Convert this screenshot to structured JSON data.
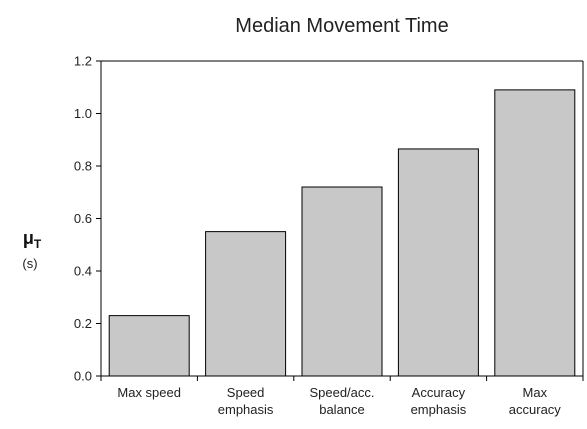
{
  "chart_data": {
    "type": "bar",
    "title": "Median Movement Time",
    "ylabel": "μ",
    "ylabel_subscript": "T",
    "yunit": "(s)",
    "xlabel": "",
    "categories": [
      [
        "Max speed"
      ],
      [
        "Speed",
        "emphasis"
      ],
      [
        "Speed/acc.",
        "balance"
      ],
      [
        "Accuracy",
        "emphasis"
      ],
      [
        "Max",
        "accuracy"
      ]
    ],
    "values": [
      0.23,
      0.55,
      0.72,
      0.865,
      1.09
    ],
    "ylim": [
      0,
      1.2
    ],
    "yticks": [
      "0.0",
      "0.2",
      "0.4",
      "0.6",
      "0.8",
      "1.0",
      "1.2"
    ],
    "grid": false,
    "legend": "none",
    "bar_color": "#c8c8c8",
    "bar_edge_color": "#000000"
  }
}
